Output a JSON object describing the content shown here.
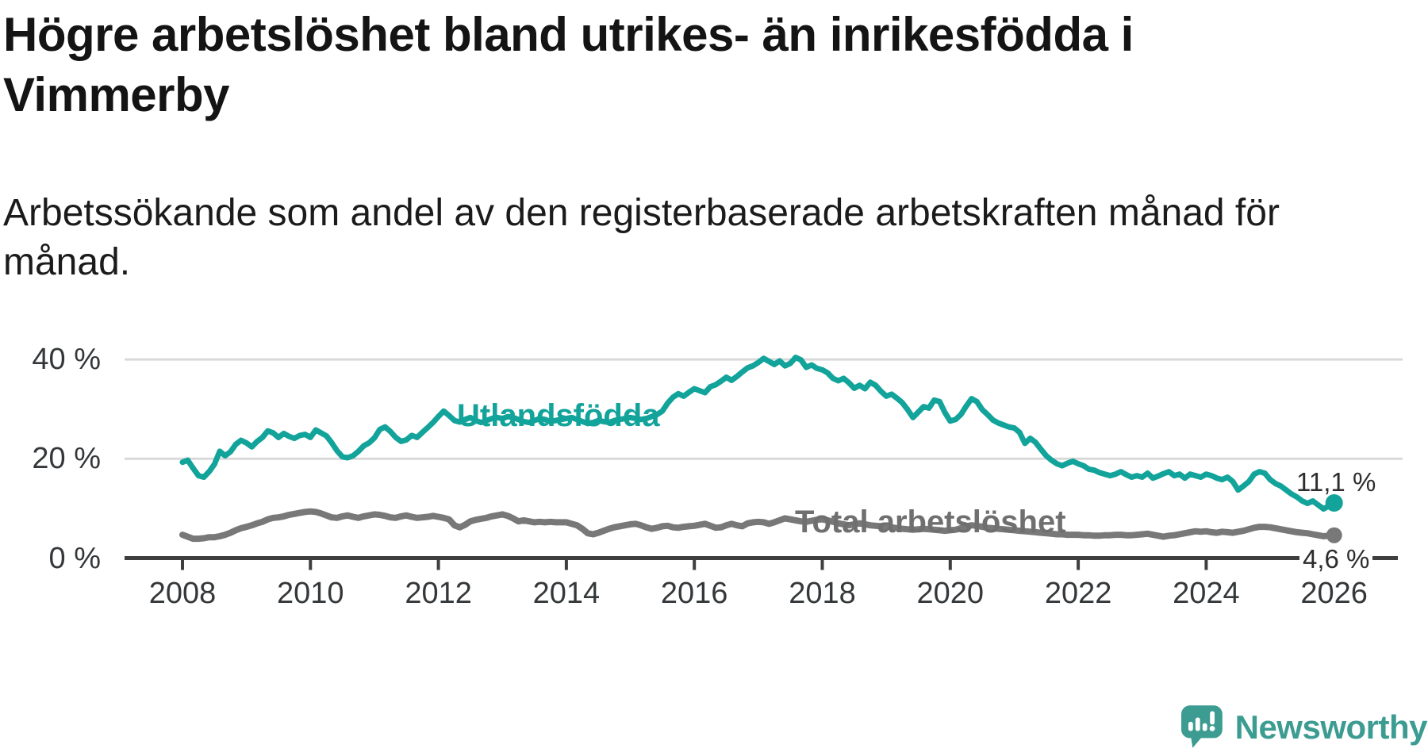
{
  "title": "Högre arbetslöshet bland utrikes- än inrikesfödda i Vimmerby",
  "subtitle": "Arbetssökande som andel av den registerbaserade arbetskraften månad för månad.",
  "colors": {
    "accent_teal": "#12a39a",
    "series_gray": "#787878",
    "axis_dark": "#3f3f3f",
    "gridline": "#d9d9d9",
    "tick_text": "#35383a",
    "brand_teal": "#3c9c92"
  },
  "y_axis": {
    "ticks": [
      {
        "v": 0,
        "label": "0 %"
      },
      {
        "v": 20,
        "label": "20 %"
      },
      {
        "v": 40,
        "label": "40 %"
      }
    ]
  },
  "x_axis": {
    "ticks": [
      "2008",
      "2010",
      "2012",
      "2014",
      "2016",
      "2018",
      "2020",
      "2022",
      "2024",
      "2026"
    ]
  },
  "chart_data": {
    "type": "line",
    "title": "Högre arbetslöshet bland utrikes- än inrikesfödda i Vimmerby",
    "xlabel": "",
    "ylabel": "Arbetssökande som andel av den registerbaserade arbetskraften",
    "frequency": "monthly",
    "x_start": 2008.0,
    "x_end": 2026.0,
    "ylim": [
      0,
      44
    ],
    "grid": "horizontal",
    "legend_position": "inline-labels",
    "series": [
      {
        "name": "Utlandsfödda",
        "color": "#12a39a",
        "end_label": "11,1 %",
        "end_value": 11.1,
        "values": [
          19.3,
          19.7,
          18.1,
          16.6,
          16.3,
          17.4,
          18.9,
          21.5,
          20.6,
          21.4,
          22.9,
          23.7,
          23.2,
          22.4,
          23.5,
          24.3,
          25.6,
          25.2,
          24.3,
          25.1,
          24.5,
          24.1,
          24.7,
          24.9,
          24.3,
          25.8,
          25.2,
          24.6,
          23.2,
          21.6,
          20.4,
          20.2,
          20.6,
          21.5,
          22.6,
          23.2,
          24.2,
          25.9,
          26.4,
          25.5,
          24.3,
          23.5,
          23.8,
          24.7,
          24.3,
          25.3,
          26.3,
          27.3,
          28.5,
          29.6,
          28.7,
          27.7,
          27.4,
          27.9,
          28.3,
          27.7,
          27.3,
          27.7,
          28.1,
          28.3,
          28.1,
          28.5,
          28.3,
          27.9,
          27.5,
          27.3,
          27.7,
          28.1,
          27.9,
          27.5,
          27.7,
          27.9,
          28.1,
          28.3,
          27.9,
          27.5,
          27.1,
          27.3,
          27.7,
          27.5,
          27.3,
          27.7,
          27.9,
          28.1,
          28.3,
          28.1,
          27.9,
          28.1,
          28.5,
          28.9,
          29.6,
          31.2,
          32.4,
          33.1,
          32.6,
          33.4,
          34.1,
          33.7,
          33.3,
          34.5,
          34.9,
          35.6,
          36.4,
          35.8,
          36.6,
          37.5,
          38.3,
          38.7,
          39.4,
          40.2,
          39.6,
          39.0,
          39.7,
          38.7,
          39.2,
          40.4,
          39.9,
          38.4,
          38.9,
          38.2,
          37.9,
          37.3,
          36.2,
          35.7,
          36.2,
          35.3,
          34.2,
          34.8,
          34.1,
          35.4,
          34.8,
          33.6,
          32.6,
          33.0,
          32.2,
          31.3,
          29.9,
          28.3,
          29.4,
          30.5,
          30.2,
          31.8,
          31.5,
          29.3,
          27.6,
          27.9,
          28.9,
          30.6,
          32.1,
          31.5,
          29.9,
          28.9,
          27.8,
          27.2,
          26.8,
          26.4,
          26.2,
          25.3,
          23.1,
          24.1,
          23.3,
          21.9,
          20.6,
          19.7,
          19.0,
          18.6,
          19.1,
          19.5,
          19.0,
          18.6,
          17.9,
          17.7,
          17.2,
          16.9,
          16.6,
          16.9,
          17.4,
          16.8,
          16.3,
          16.6,
          16.3,
          17.1,
          16.1,
          16.5,
          17.0,
          17.4,
          16.6,
          16.9,
          16.1,
          16.9,
          16.6,
          16.3,
          16.9,
          16.6,
          16.1,
          15.8,
          16.3,
          15.4,
          13.7,
          14.5,
          15.4,
          16.9,
          17.4,
          17.1,
          15.8,
          15.0,
          14.5,
          13.7,
          12.9,
          12.3,
          11.5,
          11.0,
          11.5,
          10.7,
          9.9,
          10.5,
          11.1
        ]
      },
      {
        "name": "Total arbetslöshet",
        "color": "#787878",
        "end_label": "4,6 %",
        "end_value": 4.6,
        "values": [
          4.7,
          4.3,
          3.9,
          3.9,
          4.0,
          4.2,
          4.2,
          4.4,
          4.7,
          5.1,
          5.6,
          6.0,
          6.3,
          6.6,
          7.0,
          7.3,
          7.8,
          8.1,
          8.2,
          8.4,
          8.7,
          8.9,
          9.1,
          9.3,
          9.4,
          9.3,
          9.0,
          8.6,
          8.2,
          8.1,
          8.4,
          8.6,
          8.3,
          8.1,
          8.4,
          8.6,
          8.8,
          8.7,
          8.5,
          8.2,
          8.1,
          8.4,
          8.6,
          8.3,
          8.1,
          8.2,
          8.3,
          8.5,
          8.3,
          8.1,
          7.8,
          6.6,
          6.2,
          6.7,
          7.4,
          7.7,
          7.9,
          8.1,
          8.4,
          8.6,
          8.8,
          8.5,
          8.0,
          7.4,
          7.6,
          7.4,
          7.2,
          7.3,
          7.2,
          7.3,
          7.2,
          7.2,
          7.2,
          6.9,
          6.6,
          5.9,
          5.0,
          4.8,
          5.1,
          5.5,
          5.9,
          6.2,
          6.4,
          6.6,
          6.8,
          6.9,
          6.6,
          6.2,
          5.9,
          6.1,
          6.4,
          6.5,
          6.2,
          6.1,
          6.3,
          6.4,
          6.5,
          6.7,
          6.9,
          6.5,
          6.1,
          6.2,
          6.6,
          6.9,
          6.6,
          6.4,
          7.0,
          7.2,
          7.3,
          7.2,
          6.9,
          7.2,
          7.6,
          8.0,
          7.8,
          7.6,
          7.4,
          7.3,
          7.5,
          7.7,
          7.8,
          7.6,
          7.3,
          7.0,
          6.8,
          6.6,
          6.8,
          7.0,
          6.8,
          6.6,
          6.5,
          6.4,
          6.3,
          6.2,
          6.0,
          5.9,
          5.8,
          5.7,
          5.8,
          5.9,
          5.8,
          5.7,
          5.6,
          5.5,
          5.6,
          5.7,
          6.0,
          6.4,
          6.6,
          6.5,
          6.3,
          6.1,
          6.0,
          5.9,
          5.8,
          5.7,
          5.6,
          5.5,
          5.4,
          5.3,
          5.2,
          5.1,
          5.0,
          4.9,
          4.8,
          4.8,
          4.7,
          4.7,
          4.7,
          4.6,
          4.6,
          4.5,
          4.5,
          4.6,
          4.6,
          4.7,
          4.7,
          4.6,
          4.6,
          4.7,
          4.8,
          4.9,
          4.7,
          4.5,
          4.3,
          4.5,
          4.6,
          4.8,
          5.0,
          5.2,
          5.4,
          5.3,
          5.4,
          5.2,
          5.1,
          5.3,
          5.2,
          5.1,
          5.3,
          5.5,
          5.8,
          6.1,
          6.3,
          6.3,
          6.2,
          6.0,
          5.8,
          5.6,
          5.4,
          5.2,
          5.1,
          5.0,
          4.8,
          4.6,
          4.4,
          4.5,
          4.6
        ]
      }
    ]
  },
  "branding": {
    "logo_text": "Newsworthy"
  }
}
